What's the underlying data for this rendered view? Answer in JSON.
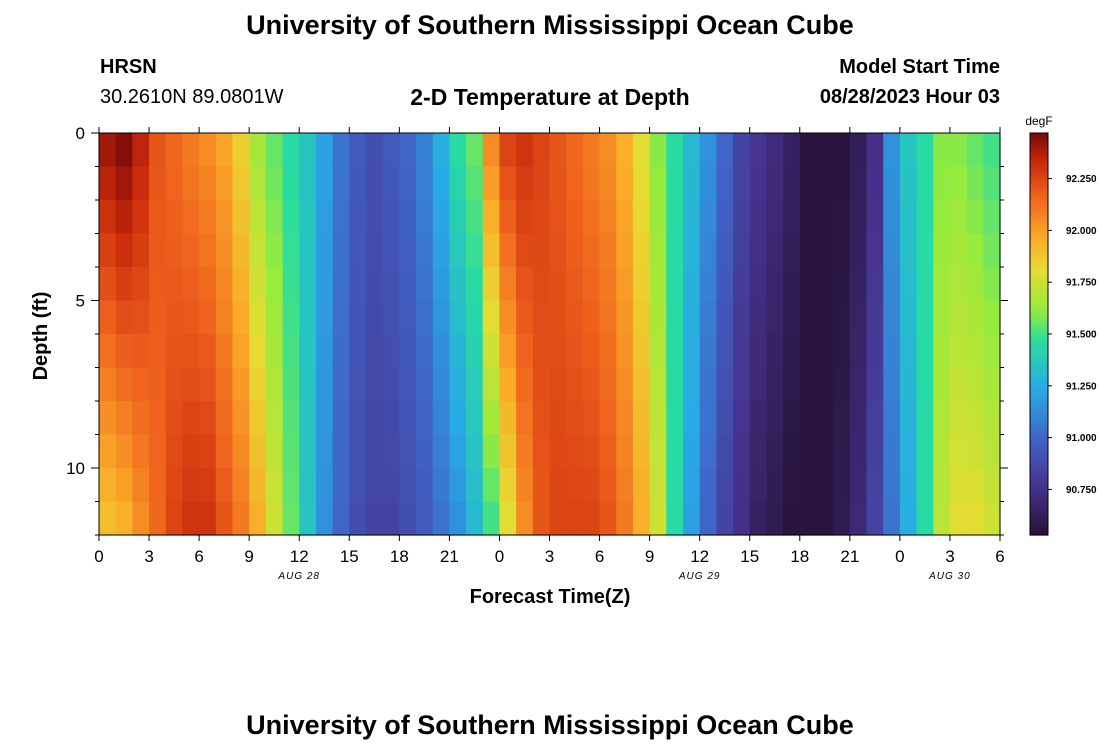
{
  "page": {
    "title": "University of Southern Mississippi Ocean Cube",
    "footer_title": "University of Southern Mississippi Ocean Cube",
    "station": "HRSN",
    "coords": "30.2610N  89.0801W",
    "subtitle": "2-D Temperature at Depth",
    "model_label": "Model Start Time",
    "model_time": "08/28/2023 Hour 03"
  },
  "chart_data": {
    "type": "heatmap",
    "title": "2-D Temperature at Depth",
    "xlabel": "Forecast Time(Z)",
    "ylabel": "Depth (ft)",
    "x_range_hours": [
      0,
      54
    ],
    "y_range_ft": [
      0,
      12
    ],
    "x_ticks": [
      {
        "h": 0,
        "label": "0"
      },
      {
        "h": 3,
        "label": "3"
      },
      {
        "h": 6,
        "label": "6"
      },
      {
        "h": 9,
        "label": "9"
      },
      {
        "h": 12,
        "label": "12"
      },
      {
        "h": 15,
        "label": "15"
      },
      {
        "h": 18,
        "label": "18"
      },
      {
        "h": 21,
        "label": "21"
      },
      {
        "h": 24,
        "label": "0"
      },
      {
        "h": 27,
        "label": "3"
      },
      {
        "h": 30,
        "label": "6"
      },
      {
        "h": 33,
        "label": "9"
      },
      {
        "h": 36,
        "label": "12"
      },
      {
        "h": 39,
        "label": "15"
      },
      {
        "h": 42,
        "label": "18"
      },
      {
        "h": 45,
        "label": "21"
      },
      {
        "h": 48,
        "label": "0"
      },
      {
        "h": 51,
        "label": "3"
      },
      {
        "h": 54,
        "label": "6"
      }
    ],
    "date_labels": [
      {
        "h": 12,
        "label": "AUG 28"
      },
      {
        "h": 36,
        "label": "AUG 29"
      },
      {
        "h": 51,
        "label": "AUG 30"
      }
    ],
    "y_ticks": [
      {
        "ft": 0,
        "label": "0"
      },
      {
        "ft": 5,
        "label": "5"
      },
      {
        "ft": 10,
        "label": "10"
      }
    ],
    "colorbar": {
      "unit": "degF",
      "min": 90.53,
      "max": 92.47,
      "ticks": [
        "90.750",
        "91.000",
        "91.250",
        "91.500",
        "91.750",
        "92.000",
        "92.250"
      ],
      "tick_values": [
        90.75,
        91.0,
        91.25,
        91.5,
        91.75,
        92.0,
        92.25
      ]
    },
    "time_step_hours": 1,
    "depth_rows": 12,
    "surface_profile_degF": [
      92.4,
      92.45,
      92.35,
      92.2,
      92.15,
      92.1,
      92.05,
      91.98,
      91.85,
      91.65,
      91.55,
      91.45,
      91.35,
      91.2,
      91.05,
      90.95,
      90.9,
      90.95,
      91.0,
      91.1,
      91.25,
      91.45,
      91.55,
      92.05,
      92.25,
      92.3,
      92.25,
      92.2,
      92.15,
      92.1,
      92.05,
      91.95,
      91.8,
      91.6,
      91.45,
      91.3,
      91.15,
      91.0,
      90.85,
      90.78,
      90.72,
      90.65,
      90.55,
      90.55,
      90.55,
      90.62,
      90.75,
      91.15,
      91.35,
      91.45,
      91.6,
      91.6,
      91.55,
      91.5
    ],
    "bottom_profile_degF": [
      91.9,
      91.95,
      92.05,
      92.15,
      92.25,
      92.3,
      92.3,
      92.2,
      92.1,
      91.95,
      91.75,
      91.55,
      91.35,
      91.15,
      91.0,
      90.9,
      90.85,
      90.85,
      90.9,
      90.95,
      91.05,
      91.15,
      91.3,
      91.5,
      91.8,
      92.05,
      92.2,
      92.25,
      92.25,
      92.25,
      92.2,
      92.1,
      91.95,
      91.75,
      91.45,
      91.2,
      91.0,
      90.85,
      90.75,
      90.65,
      90.6,
      90.55,
      90.55,
      90.55,
      90.6,
      90.7,
      90.85,
      91.05,
      91.25,
      91.45,
      91.7,
      91.8,
      91.8,
      91.75
    ]
  }
}
